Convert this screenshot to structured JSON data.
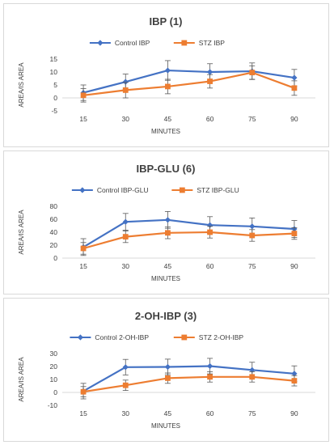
{
  "chart_data": [
    {
      "type": "line",
      "title": "IBP (1)",
      "xlabel": "MINUTES",
      "ylabel": "AREA/IS AREA",
      "x": [
        15,
        30,
        45,
        60,
        75,
        90
      ],
      "ylim": [
        -5,
        15
      ],
      "yticks": [
        -5,
        0,
        5,
        10,
        15
      ],
      "grid": false,
      "legend_position": "top-center",
      "series": [
        {
          "name": "Control IBP",
          "color": "#4472C4",
          "marker": "diamond",
          "values": [
            2.0,
            6.2,
            10.6,
            10.0,
            10.3,
            7.8
          ],
          "errors": [
            3.0,
            3.0,
            3.8,
            3.2,
            3.2,
            3.2
          ]
        },
        {
          "name": "STZ IBP",
          "color": "#ED7D31",
          "marker": "square",
          "values": [
            1.0,
            3.0,
            4.4,
            6.4,
            9.8,
            3.8
          ],
          "errors": [
            2.6,
            3.0,
            2.8,
            2.6,
            2.6,
            2.8
          ]
        }
      ]
    },
    {
      "type": "line",
      "title": "IBP-GLU (6)",
      "xlabel": "MINUTES",
      "ylabel": "AREA/IS AREA",
      "x": [
        15,
        30,
        45,
        60,
        75,
        90
      ],
      "ylim": [
        0,
        80
      ],
      "yticks": [
        0,
        20,
        40,
        60,
        80
      ],
      "grid": false,
      "legend_position": "top-center",
      "series": [
        {
          "name": "Control IBP-GLU",
          "color": "#4472C4",
          "marker": "diamond",
          "values": [
            17,
            56,
            59,
            51,
            49,
            45
          ],
          "errors": [
            13,
            13,
            13,
            13,
            13,
            13
          ]
        },
        {
          "name": "STZ  IBP-GLU",
          "color": "#ED7D31",
          "marker": "square",
          "values": [
            15,
            33,
            39,
            40,
            35,
            38
          ],
          "errors": [
            9,
            9,
            9,
            9,
            9,
            9
          ]
        }
      ]
    },
    {
      "type": "line",
      "title": "2-OH-IBP (3)",
      "xlabel": "MINUTES",
      "ylabel": "AREA/IS AREA",
      "x": [
        15,
        30,
        45,
        60,
        75,
        90
      ],
      "ylim": [
        -10,
        30
      ],
      "yticks": [
        -10,
        0,
        10,
        20,
        30
      ],
      "grid": false,
      "legend_position": "top-center",
      "series": [
        {
          "name": "Control 2-OH-IBP",
          "color": "#4472C4",
          "marker": "diamond",
          "values": [
            1.0,
            19.5,
            19.7,
            20.3,
            17.3,
            14.5
          ],
          "errors": [
            6.0,
            6.0,
            6.0,
            6.0,
            6.0,
            6.0
          ]
        },
        {
          "name": "STZ 2-OH-IBP",
          "color": "#ED7D31",
          "marker": "square",
          "values": [
            0.5,
            5.5,
            11.0,
            12.0,
            12.0,
            9.0
          ],
          "errors": [
            4.0,
            4.0,
            4.0,
            4.0,
            4.0,
            4.0
          ]
        }
      ]
    }
  ]
}
